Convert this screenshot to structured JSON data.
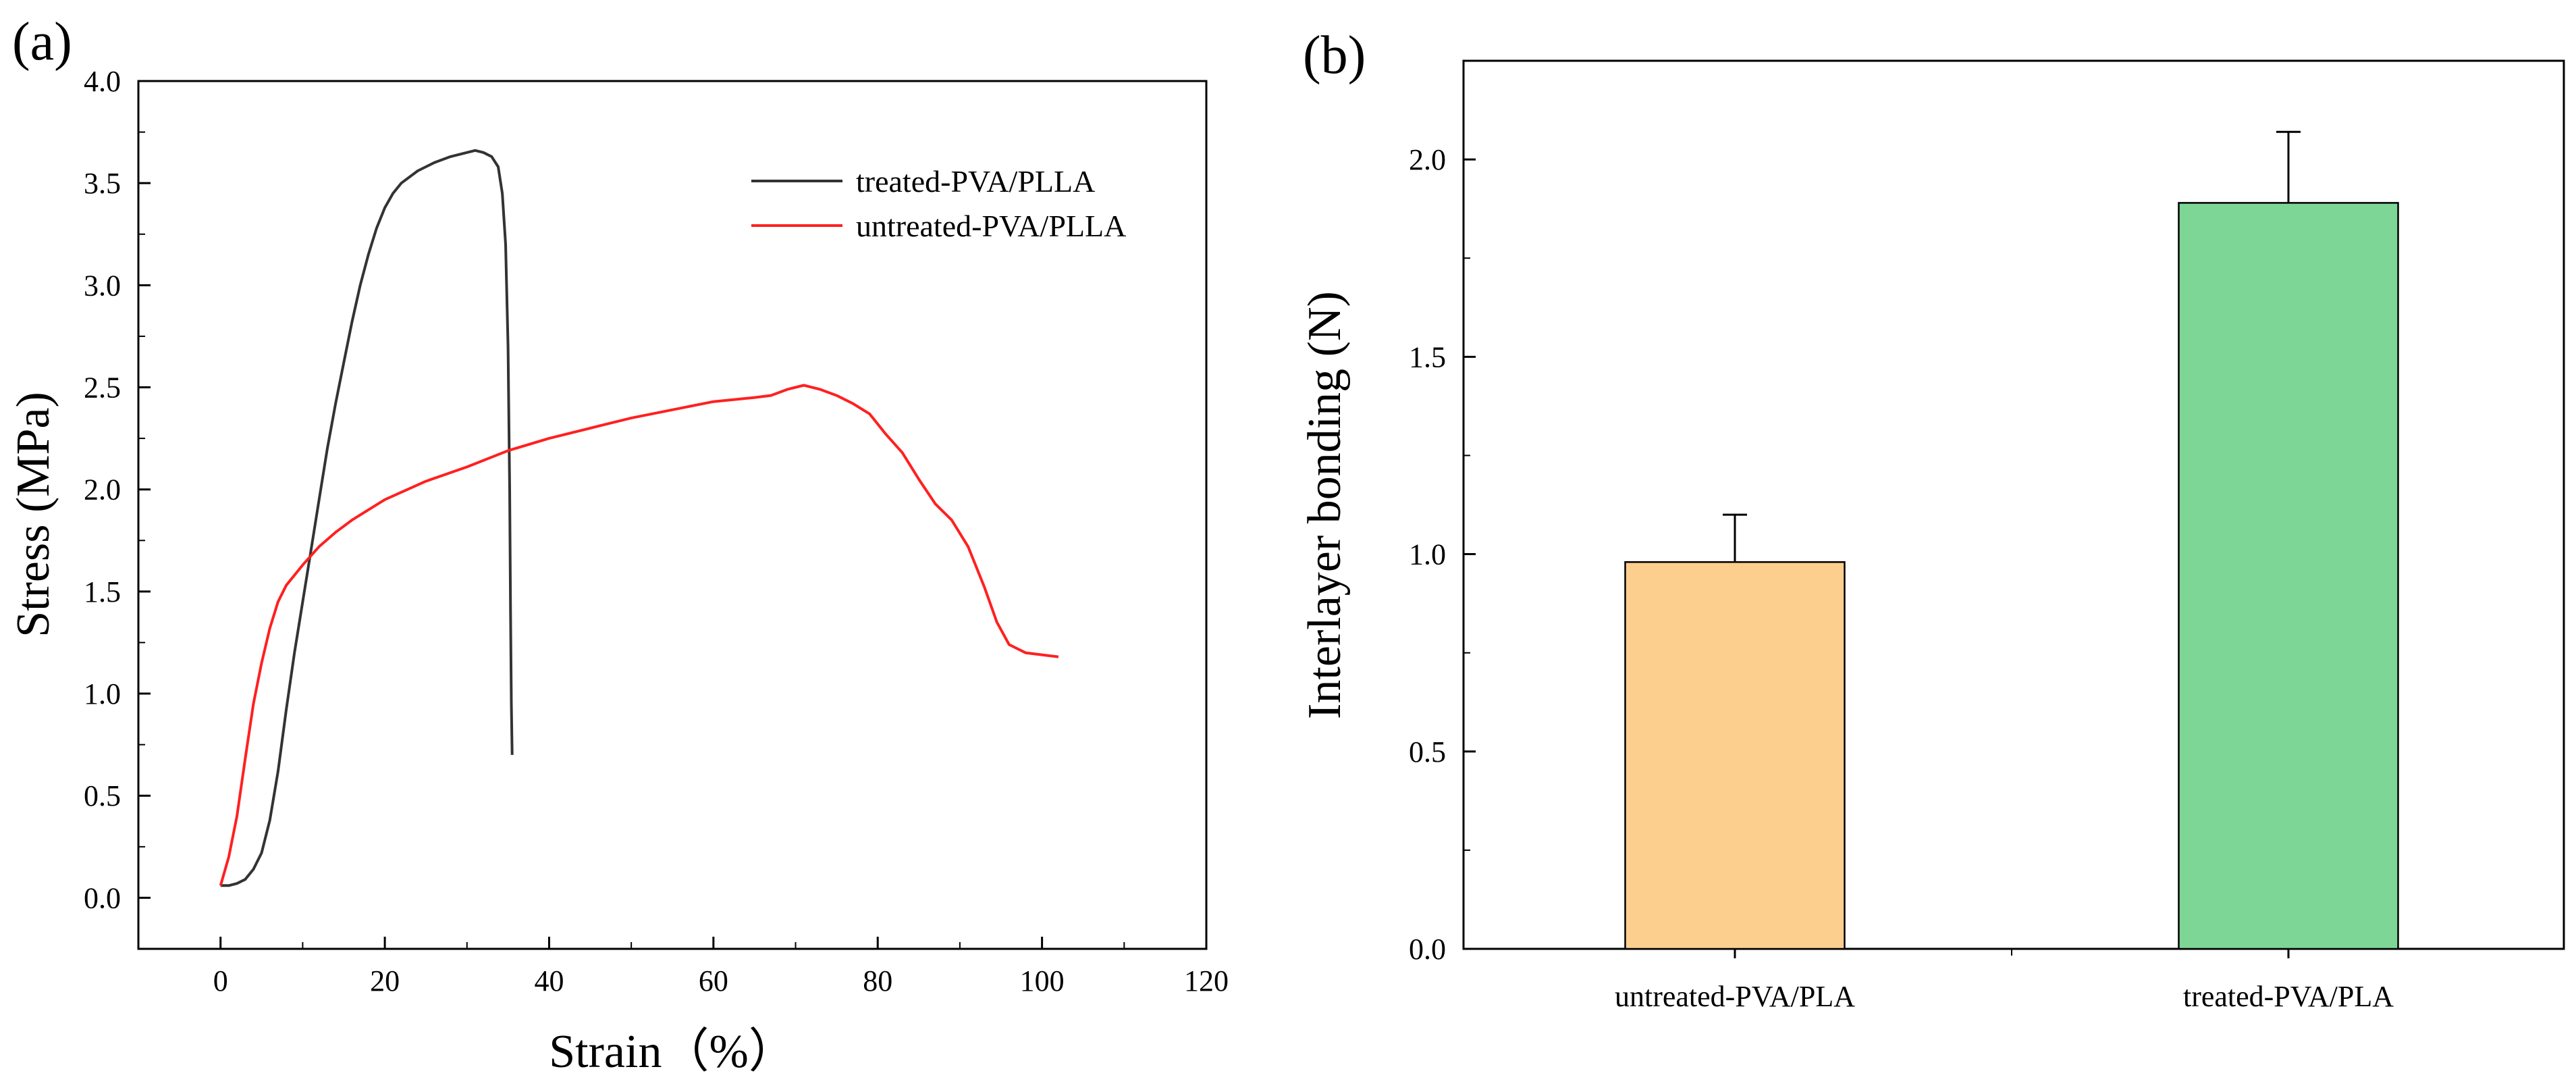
{
  "panel_labels": [
    "(a)",
    "(b)"
  ],
  "chart_data": [
    {
      "panel": "(a)",
      "type": "line",
      "title": "",
      "xlabel": "Strain（%）",
      "ylabel": "Stress (MPa)",
      "xlim": [
        -10,
        120
      ],
      "ylim": [
        -0.25,
        4.0
      ],
      "xticks": [
        0,
        20,
        40,
        60,
        80,
        100,
        120
      ],
      "yticks": [
        0.0,
        0.5,
        1.0,
        1.5,
        2.0,
        2.5,
        3.0,
        3.5,
        4.0
      ],
      "xtick_labels": [
        "0",
        "20",
        "40",
        "60",
        "80",
        "100",
        "120"
      ],
      "ytick_labels": [
        "0.0",
        "0.5",
        "1.0",
        "1.5",
        "2.0",
        "2.5",
        "3.0",
        "3.5",
        "4.0"
      ],
      "legend_position": "top-right",
      "series": [
        {
          "name": "treated-PVA/PLLA",
          "color": "#333333",
          "points": [
            [
              0,
              0.06
            ],
            [
              1,
              0.06
            ],
            [
              2,
              0.07
            ],
            [
              3,
              0.09
            ],
            [
              4,
              0.14
            ],
            [
              5,
              0.22
            ],
            [
              6,
              0.38
            ],
            [
              7,
              0.62
            ],
            [
              8,
              0.92
            ],
            [
              9,
              1.2
            ],
            [
              10,
              1.45
            ],
            [
              11,
              1.7
            ],
            [
              12,
              1.95
            ],
            [
              13,
              2.2
            ],
            [
              14,
              2.42
            ],
            [
              15,
              2.62
            ],
            [
              16,
              2.82
            ],
            [
              17,
              3.0
            ],
            [
              18,
              3.15
            ],
            [
              19,
              3.28
            ],
            [
              20,
              3.38
            ],
            [
              21,
              3.45
            ],
            [
              22,
              3.5
            ],
            [
              24,
              3.56
            ],
            [
              26,
              3.6
            ],
            [
              28,
              3.63
            ],
            [
              30,
              3.65
            ],
            [
              31,
              3.66
            ],
            [
              32,
              3.65
            ],
            [
              33,
              3.63
            ],
            [
              33.8,
              3.58
            ],
            [
              34.3,
              3.45
            ],
            [
              34.7,
              3.2
            ],
            [
              35,
              2.7
            ],
            [
              35.2,
              2.0
            ],
            [
              35.3,
              1.4
            ],
            [
              35.4,
              0.95
            ],
            [
              35.5,
              0.7
            ]
          ]
        },
        {
          "name": "untreated-PVA/PLLA",
          "color": "#ff2020",
          "points": [
            [
              0,
              0.06
            ],
            [
              1,
              0.2
            ],
            [
              2,
              0.4
            ],
            [
              3,
              0.68
            ],
            [
              4,
              0.95
            ],
            [
              5,
              1.15
            ],
            [
              6,
              1.32
            ],
            [
              7,
              1.45
            ],
            [
              8,
              1.53
            ],
            [
              10,
              1.63
            ],
            [
              12,
              1.72
            ],
            [
              14,
              1.79
            ],
            [
              16,
              1.85
            ],
            [
              18,
              1.9
            ],
            [
              20,
              1.95
            ],
            [
              25,
              2.04
            ],
            [
              30,
              2.11
            ],
            [
              35,
              2.19
            ],
            [
              40,
              2.25
            ],
            [
              45,
              2.3
            ],
            [
              50,
              2.35
            ],
            [
              55,
              2.39
            ],
            [
              60,
              2.43
            ],
            [
              65,
              2.45
            ],
            [
              67,
              2.46
            ],
            [
              69,
              2.49
            ],
            [
              71,
              2.51
            ],
            [
              73,
              2.49
            ],
            [
              75,
              2.46
            ],
            [
              77,
              2.42
            ],
            [
              79,
              2.37
            ],
            [
              81,
              2.27
            ],
            [
              83,
              2.18
            ],
            [
              85,
              2.05
            ],
            [
              87,
              1.93
            ],
            [
              89,
              1.85
            ],
            [
              91,
              1.72
            ],
            [
              93,
              1.52
            ],
            [
              94.5,
              1.35
            ],
            [
              96,
              1.24
            ],
            [
              98,
              1.2
            ],
            [
              100,
              1.19
            ],
            [
              102,
              1.18
            ]
          ]
        }
      ]
    },
    {
      "panel": "(b)",
      "type": "bar",
      "title": "",
      "xlabel": "",
      "ylabel": "Interlayer bonding (N)",
      "ylim": [
        0,
        2.25
      ],
      "yticks": [
        0.0,
        0.5,
        1.0,
        1.5,
        2.0
      ],
      "ytick_labels": [
        "0.0",
        "0.5",
        "1.0",
        "1.5",
        "2.0"
      ],
      "categories": [
        "untreated-PVA/PLA",
        "treated-PVA/PLA"
      ],
      "values": [
        0.98,
        1.89
      ],
      "errors": [
        0.12,
        0.18
      ],
      "colors": [
        "#fdcf8f",
        "#7dd695"
      ]
    }
  ]
}
